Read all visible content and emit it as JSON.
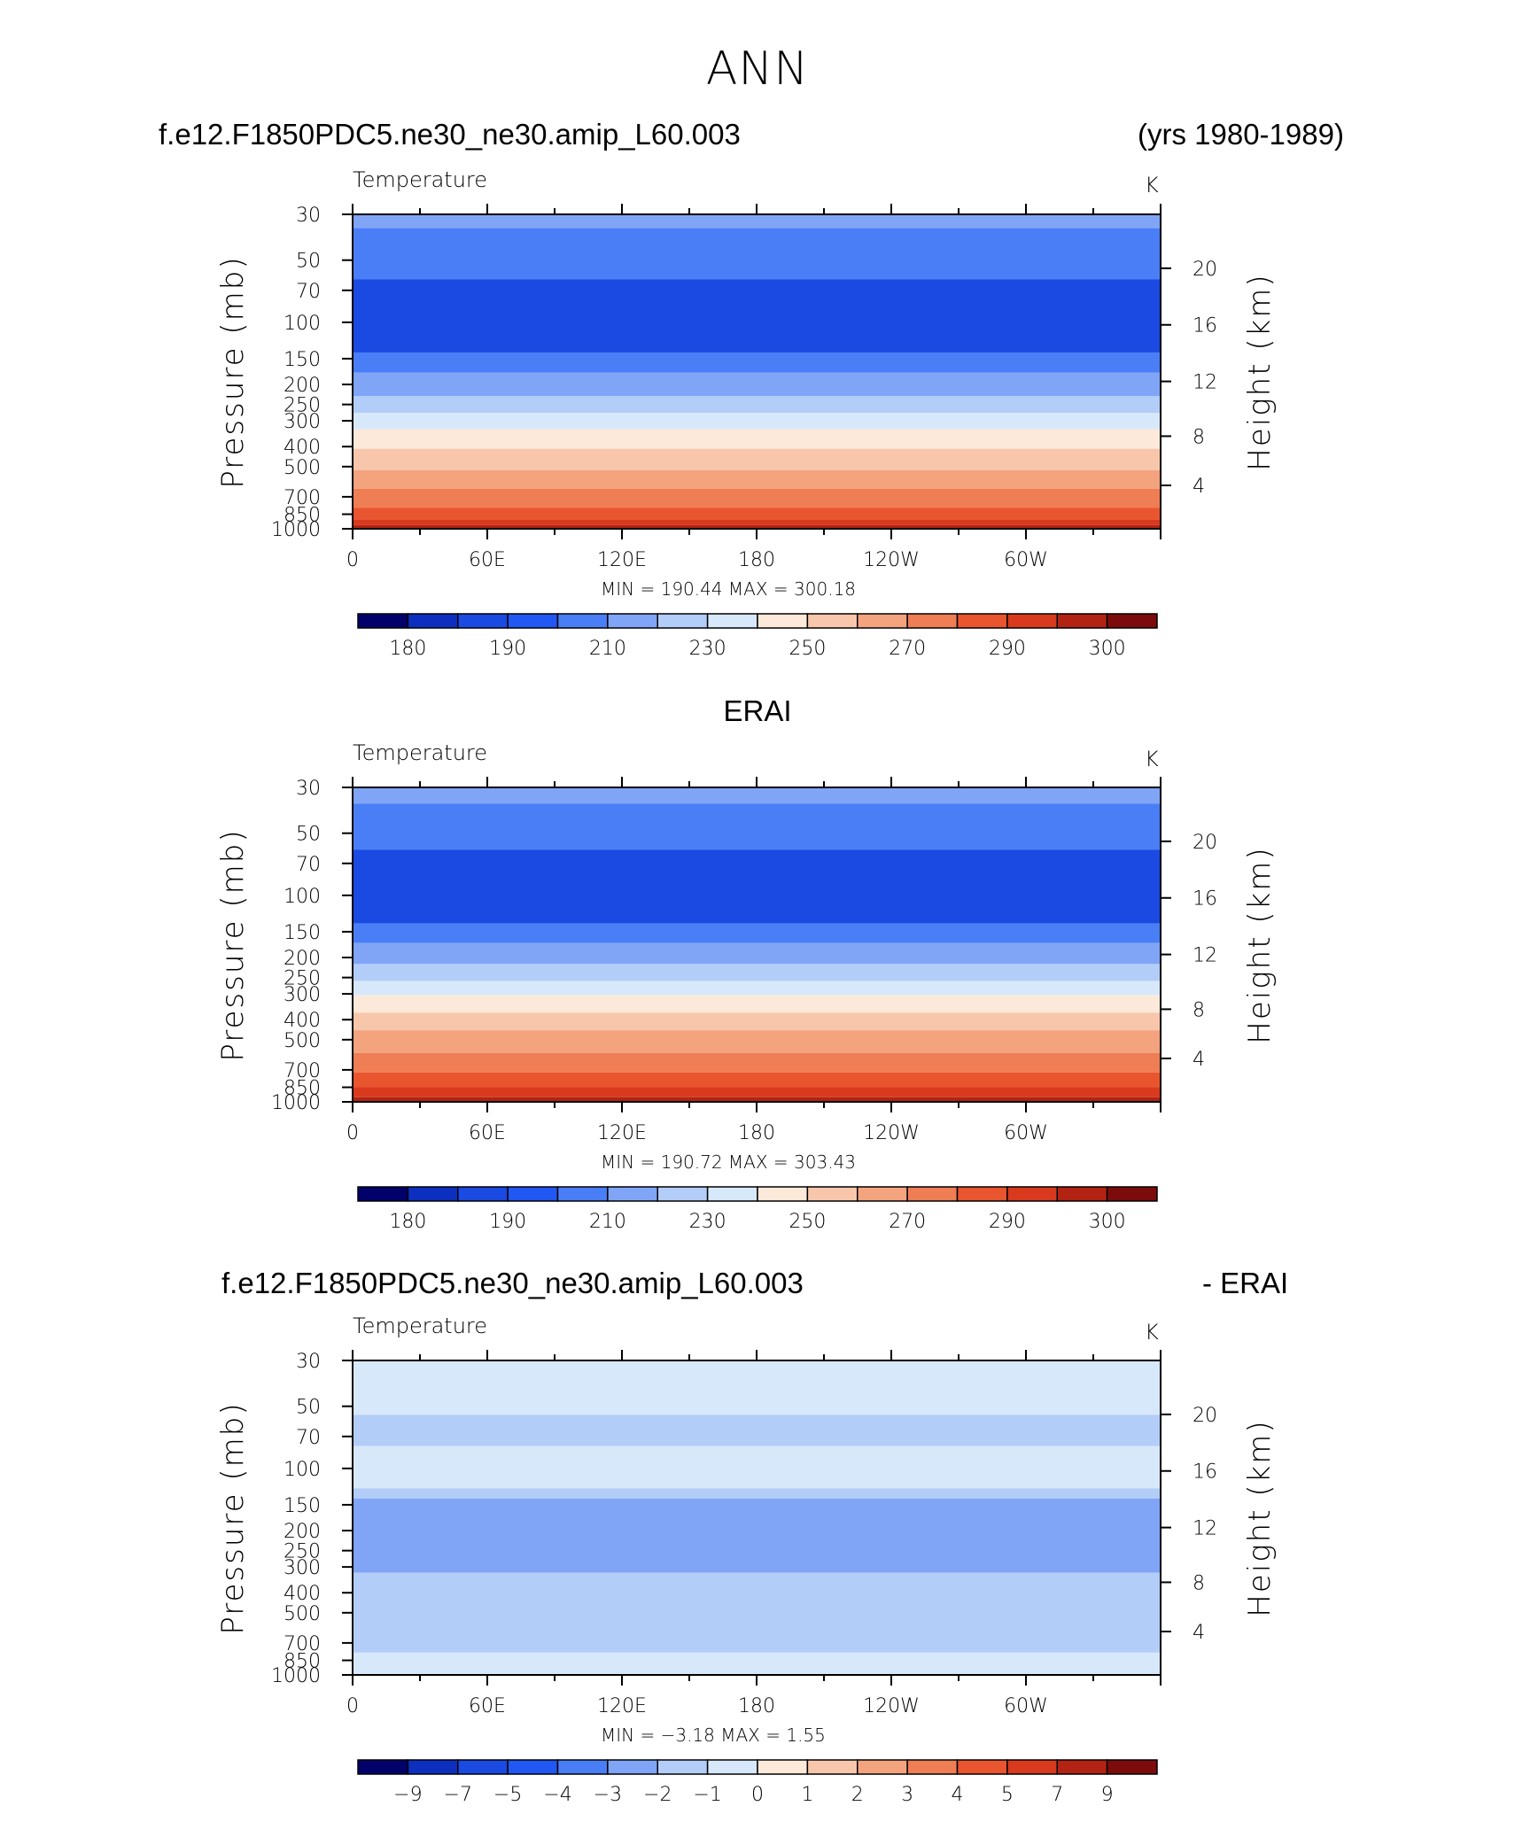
{
  "page": {
    "title": "ANN",
    "case_name": "f.e12.F1850PDC5.ne30_ne30.amip_L60.003",
    "years": "(yrs 1980-1989)",
    "obs_name": "ERAI",
    "diff_case_name": "f.e12.F1850PDC5.ne30_ne30.amip_L60.003",
    "diff_suffix": "- ERAI"
  },
  "chart_data": [
    {
      "type": "heatmap",
      "title": "f.e12.F1850PDC5.ne30_ne30.amip_L60.003",
      "variable_label": "Temperature",
      "units_label": "K",
      "ylabel": "Pressure (mb)",
      "y2label": "Height (km)",
      "x_ticks": [
        "0",
        "60E",
        "120E",
        "180",
        "120W",
        "60W"
      ],
      "y_ticks": [
        "30",
        "50",
        "70",
        "100",
        "150",
        "200",
        "250",
        "300",
        "400",
        "500",
        "700",
        "850",
        "1000"
      ],
      "y2_ticks": [
        "20",
        "16",
        "12",
        "8",
        "4"
      ],
      "stats_text": "MIN =  190.44   MAX =  300.18",
      "min": 190.44,
      "max": 300.18,
      "colorbar_ticks": [
        "180",
        "190",
        "210",
        "230",
        "250",
        "270",
        "290",
        "300"
      ],
      "colorbar_colors": [
        "#02016c",
        "#0c2fbf",
        "#1a4ae2",
        "#2157f3",
        "#4a7ef6",
        "#80a5f7",
        "#b3cdf9",
        "#d8e8fb",
        "#fde9d9",
        "#f8c7ab",
        "#f4a37f",
        "#ef7e54",
        "#e9552e",
        "#d93a1e",
        "#b22313",
        "#7c0c0b"
      ],
      "bands": [
        {
          "p_bottom": 35,
          "p_top": 30,
          "color": "#80a5f7"
        },
        {
          "p_bottom": 62,
          "p_top": 35,
          "color": "#4a7ef6"
        },
        {
          "p_bottom": 140,
          "p_top": 62,
          "color": "#1a4ae2"
        },
        {
          "p_bottom": 175,
          "p_top": 140,
          "color": "#4a7ef6"
        },
        {
          "p_bottom": 228,
          "p_top": 175,
          "color": "#80a5f7"
        },
        {
          "p_bottom": 275,
          "p_top": 228,
          "color": "#b3cdf9"
        },
        {
          "p_bottom": 330,
          "p_top": 275,
          "color": "#d8e8fb"
        },
        {
          "p_bottom": 410,
          "p_top": 330,
          "color": "#fde9d9"
        },
        {
          "p_bottom": 520,
          "p_top": 410,
          "color": "#f8c7ab"
        },
        {
          "p_bottom": 640,
          "p_top": 520,
          "color": "#f4a37f"
        },
        {
          "p_bottom": 790,
          "p_top": 640,
          "color": "#ef7e54"
        },
        {
          "p_bottom": 900,
          "p_top": 790,
          "color": "#e9552e"
        },
        {
          "p_bottom": 960,
          "p_top": 900,
          "color": "#d93a1e"
        },
        {
          "p_bottom": 1000,
          "p_top": 960,
          "color": "#b22313"
        }
      ]
    },
    {
      "type": "heatmap",
      "title": "ERAI",
      "variable_label": "Temperature",
      "units_label": "K",
      "ylabel": "Pressure (mb)",
      "y2label": "Height (km)",
      "x_ticks": [
        "0",
        "60E",
        "120E",
        "180",
        "120W",
        "60W"
      ],
      "y_ticks": [
        "30",
        "50",
        "70",
        "100",
        "150",
        "200",
        "250",
        "300",
        "400",
        "500",
        "700",
        "850",
        "1000"
      ],
      "y2_ticks": [
        "20",
        "16",
        "12",
        "8",
        "4"
      ],
      "stats_text": "MIN =  190.72   MAX =  303.43",
      "min": 190.72,
      "max": 303.43,
      "colorbar_ticks": [
        "180",
        "190",
        "210",
        "230",
        "250",
        "270",
        "290",
        "300"
      ],
      "colorbar_colors": [
        "#02016c",
        "#0c2fbf",
        "#1a4ae2",
        "#2157f3",
        "#4a7ef6",
        "#80a5f7",
        "#b3cdf9",
        "#d8e8fb",
        "#fde9d9",
        "#f8c7ab",
        "#f4a37f",
        "#ef7e54",
        "#e9552e",
        "#d93a1e",
        "#b22313",
        "#7c0c0b"
      ],
      "bands": [
        {
          "p_bottom": 36,
          "p_top": 30,
          "color": "#80a5f7"
        },
        {
          "p_bottom": 60,
          "p_top": 36,
          "color": "#4a7ef6"
        },
        {
          "p_bottom": 137,
          "p_top": 60,
          "color": "#1a4ae2"
        },
        {
          "p_bottom": 170,
          "p_top": 137,
          "color": "#4a7ef6"
        },
        {
          "p_bottom": 215,
          "p_top": 170,
          "color": "#80a5f7"
        },
        {
          "p_bottom": 260,
          "p_top": 215,
          "color": "#b3cdf9"
        },
        {
          "p_bottom": 305,
          "p_top": 260,
          "color": "#d8e8fb"
        },
        {
          "p_bottom": 370,
          "p_top": 305,
          "color": "#fde9d9"
        },
        {
          "p_bottom": 450,
          "p_top": 370,
          "color": "#f8c7ab"
        },
        {
          "p_bottom": 580,
          "p_top": 450,
          "color": "#f4a37f"
        },
        {
          "p_bottom": 720,
          "p_top": 580,
          "color": "#ef7e54"
        },
        {
          "p_bottom": 850,
          "p_top": 720,
          "color": "#e9552e"
        },
        {
          "p_bottom": 950,
          "p_top": 850,
          "color": "#d93a1e"
        },
        {
          "p_bottom": 1000,
          "p_top": 950,
          "color": "#b22313"
        }
      ]
    },
    {
      "type": "heatmap",
      "title": "f.e12.F1850PDC5.ne30_ne30.amip_L60.003 - ERAI",
      "variable_label": "Temperature",
      "units_label": "K",
      "ylabel": "Pressure (mb)",
      "y2label": "Height (km)",
      "x_ticks": [
        "0",
        "60E",
        "120E",
        "180",
        "120W",
        "60W"
      ],
      "y_ticks": [
        "30",
        "50",
        "70",
        "100",
        "150",
        "200",
        "250",
        "300",
        "400",
        "500",
        "700",
        "850",
        "1000"
      ],
      "y2_ticks": [
        "20",
        "16",
        "12",
        "8",
        "4"
      ],
      "stats_text": "MIN =    −3.18   MAX =     1.55",
      "min": -3.18,
      "max": 1.55,
      "colorbar_ticks": [
        "−9",
        "−7",
        "−5",
        "−4",
        "−3",
        "−2",
        "−1",
        "0",
        "1",
        "2",
        "3",
        "4",
        "5",
        "7",
        "9"
      ],
      "colorbar_colors": [
        "#02016c",
        "#0c2fbf",
        "#1a4ae2",
        "#2157f3",
        "#4a7ef6",
        "#80a5f7",
        "#b3cdf9",
        "#d8e8fb",
        "#fde9d9",
        "#f8c7ab",
        "#f4a37f",
        "#ef7e54",
        "#e9552e",
        "#d93a1e",
        "#b22313",
        "#7c0c0b"
      ],
      "bands": [
        {
          "p_bottom": 55,
          "p_top": 30,
          "color": "#d8e8fb"
        },
        {
          "p_bottom": 78,
          "p_top": 55,
          "color": "#b3cdf9"
        },
        {
          "p_bottom": 125,
          "p_top": 78,
          "color": "#d8e8fb"
        },
        {
          "p_bottom": 140,
          "p_top": 125,
          "color": "#b3cdf9"
        },
        {
          "p_bottom": 320,
          "p_top": 140,
          "color": "#80a5f7"
        },
        {
          "p_bottom": 780,
          "p_top": 320,
          "color": "#b3cdf9"
        },
        {
          "p_bottom": 1000,
          "p_top": 780,
          "color": "#d8e8fb"
        }
      ]
    }
  ]
}
